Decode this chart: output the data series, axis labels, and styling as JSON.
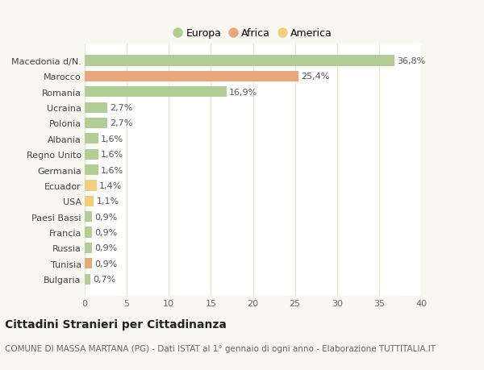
{
  "categories": [
    "Bulgaria",
    "Tunisia",
    "Russia",
    "Francia",
    "Paesi Bassi",
    "USA",
    "Ecuador",
    "Germania",
    "Regno Unito",
    "Albania",
    "Polonia",
    "Ucraina",
    "Romania",
    "Marocco",
    "Macedonia d/N."
  ],
  "values": [
    0.7,
    0.9,
    0.9,
    0.9,
    0.9,
    1.1,
    1.4,
    1.6,
    1.6,
    1.6,
    2.7,
    2.7,
    16.9,
    25.4,
    36.8
  ],
  "colors": [
    "#b2cc96",
    "#e8a87c",
    "#b2cc96",
    "#b2cc96",
    "#b2cc96",
    "#f0d080",
    "#f0d080",
    "#b2cc96",
    "#b2cc96",
    "#b2cc96",
    "#b2cc96",
    "#b2cc96",
    "#b2cc96",
    "#e8a87c",
    "#b2cc96"
  ],
  "labels": [
    "0,7%",
    "0,9%",
    "0,9%",
    "0,9%",
    "0,9%",
    "1,1%",
    "1,4%",
    "1,6%",
    "1,6%",
    "1,6%",
    "2,7%",
    "2,7%",
    "16,9%",
    "25,4%",
    "36,8%"
  ],
  "legend_labels": [
    "Europa",
    "Africa",
    "America"
  ],
  "legend_colors": [
    "#b2cc96",
    "#e8a87c",
    "#f0d080"
  ],
  "title": "Cittadini Stranieri per Cittadinanza",
  "subtitle": "COMUNE DI MASSA MARTANA (PG) - Dati ISTAT al 1° gennaio di ogni anno - Elaborazione TUTTITALIA.IT",
  "xlim": [
    0,
    40
  ],
  "xticks": [
    0,
    5,
    10,
    15,
    20,
    25,
    30,
    35,
    40
  ],
  "bg_color": "#f8f8f0",
  "plot_bg_color": "#ffffff",
  "grid_color": "#e8e8d8",
  "bar_height": 0.68,
  "title_fontsize": 10,
  "subtitle_fontsize": 7.5,
  "tick_fontsize": 8,
  "label_fontsize": 8
}
